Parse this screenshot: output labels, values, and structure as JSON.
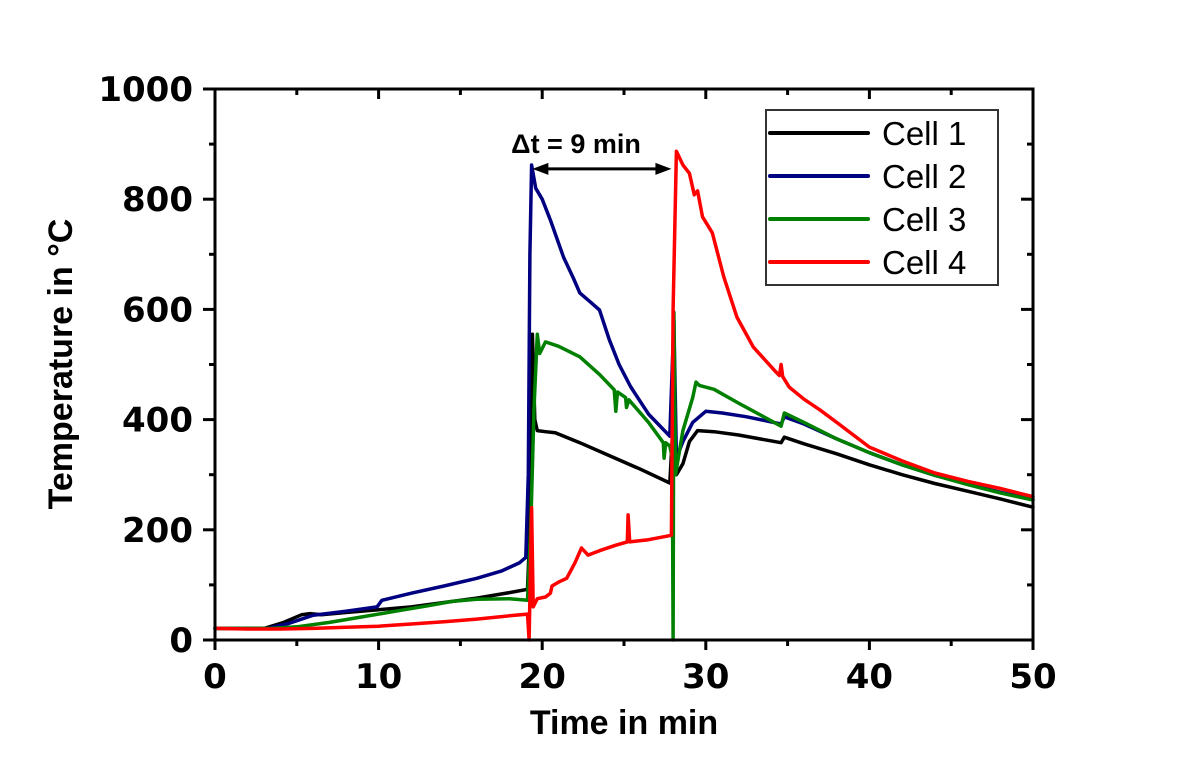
{
  "chart_data": {
    "type": "line",
    "title": "",
    "xlabel": "Time in min",
    "ylabel": "Temperature in °C",
    "xlim": [
      0,
      50
    ],
    "ylim": [
      0,
      1000
    ],
    "x_ticks": [
      0,
      10,
      20,
      30,
      40,
      50
    ],
    "x_tick_labels": [
      "0",
      "10",
      "20",
      "30",
      "40",
      "50"
    ],
    "x_minor_step": 5,
    "y_ticks": [
      0,
      200,
      400,
      600,
      800,
      1000
    ],
    "y_tick_labels": [
      "0",
      "200",
      "400",
      "600",
      "800",
      "1000"
    ],
    "y_minor_step": 100,
    "grid": false,
    "legend": {
      "position": "top-right",
      "entries": [
        "Cell 1",
        "Cell 2",
        "Cell 3",
        "Cell 4"
      ]
    },
    "annotation": {
      "text": "Δt = 9 min",
      "arrow_from_x": 19.4,
      "arrow_to_x": 27.9,
      "arrow_y": 855
    },
    "series": [
      {
        "name": "Cell 1",
        "color": "#000000",
        "points": [
          [
            0,
            21
          ],
          [
            3.0,
            21
          ],
          [
            4.2,
            32
          ],
          [
            5.3,
            46
          ],
          [
            5.8,
            48
          ],
          [
            6.5,
            46
          ],
          [
            8,
            50
          ],
          [
            10,
            55
          ],
          [
            12,
            60
          ],
          [
            14,
            68
          ],
          [
            16,
            76
          ],
          [
            18,
            86
          ],
          [
            19.1,
            92
          ],
          [
            19.25,
            200
          ],
          [
            19.4,
            555
          ],
          [
            19.55,
            400
          ],
          [
            19.7,
            380
          ],
          [
            20.2,
            378
          ],
          [
            20.8,
            376
          ],
          [
            22.3,
            358
          ],
          [
            24,
            336
          ],
          [
            26,
            310
          ],
          [
            27.8,
            285
          ],
          [
            28.05,
            420
          ],
          [
            28.2,
            300
          ],
          [
            28.6,
            320
          ],
          [
            29.0,
            360
          ],
          [
            29.5,
            380
          ],
          [
            30.5,
            378
          ],
          [
            32,
            372
          ],
          [
            34.6,
            358
          ],
          [
            34.8,
            368
          ],
          [
            36,
            356
          ],
          [
            38,
            338
          ],
          [
            40,
            318
          ],
          [
            42,
            300
          ],
          [
            44,
            284
          ],
          [
            46,
            270
          ],
          [
            48,
            256
          ],
          [
            50,
            241
          ]
        ]
      },
      {
        "name": "Cell 2",
        "color": "#000080",
        "points": [
          [
            0,
            21
          ],
          [
            3.2,
            21
          ],
          [
            4.5,
            30
          ],
          [
            6,
            45
          ],
          [
            8,
            52
          ],
          [
            9.9,
            60
          ],
          [
            10.2,
            72
          ],
          [
            12,
            85
          ],
          [
            14,
            98
          ],
          [
            16,
            112
          ],
          [
            17.5,
            125
          ],
          [
            18.6,
            140
          ],
          [
            19.0,
            150
          ],
          [
            19.15,
            300
          ],
          [
            19.25,
            700
          ],
          [
            19.35,
            862
          ],
          [
            19.6,
            820
          ],
          [
            20.0,
            800
          ],
          [
            20.5,
            762
          ],
          [
            21.3,
            695
          ],
          [
            21.9,
            657
          ],
          [
            22.3,
            630
          ],
          [
            23.0,
            612
          ],
          [
            23.5,
            599
          ],
          [
            24.1,
            545
          ],
          [
            24.7,
            500
          ],
          [
            25.4,
            460
          ],
          [
            26.5,
            410
          ],
          [
            27.8,
            370
          ],
          [
            28.05,
            580
          ],
          [
            28.2,
            330
          ],
          [
            28.6,
            360
          ],
          [
            29.2,
            395
          ],
          [
            30,
            415
          ],
          [
            31,
            412
          ],
          [
            32.5,
            405
          ],
          [
            34.6,
            392
          ],
          [
            34.8,
            405
          ],
          [
            36,
            392
          ],
          [
            38,
            365
          ],
          [
            40,
            340
          ],
          [
            42,
            318
          ],
          [
            44,
            299
          ],
          [
            46,
            283
          ],
          [
            48,
            268
          ],
          [
            50,
            255
          ]
        ]
      },
      {
        "name": "Cell 3",
        "color": "#008000",
        "points": [
          [
            0,
            21
          ],
          [
            3.5,
            21
          ],
          [
            5,
            24
          ],
          [
            7,
            32
          ],
          [
            9,
            42
          ],
          [
            11,
            52
          ],
          [
            13,
            62
          ],
          [
            14.5,
            70
          ],
          [
            16,
            74
          ],
          [
            18,
            75
          ],
          [
            19.1,
            72
          ],
          [
            19.3,
            200
          ],
          [
            19.5,
            420
          ],
          [
            19.7,
            555
          ],
          [
            19.85,
            520
          ],
          [
            20.2,
            541
          ],
          [
            21,
            533
          ],
          [
            22.3,
            514
          ],
          [
            23.5,
            482
          ],
          [
            24.4,
            454
          ],
          [
            24.5,
            415
          ],
          [
            24.6,
            450
          ],
          [
            25.1,
            440
          ],
          [
            25.15,
            422
          ],
          [
            25.3,
            436
          ],
          [
            26.5,
            395
          ],
          [
            27.4,
            358
          ],
          [
            27.45,
            330
          ],
          [
            27.55,
            358
          ],
          [
            27.8,
            352
          ],
          [
            27.95,
            330
          ],
          [
            28.0,
            0
          ],
          [
            28.05,
            595
          ],
          [
            28.15,
            300
          ],
          [
            28.6,
            380
          ],
          [
            29.2,
            440
          ],
          [
            29.4,
            468
          ],
          [
            29.6,
            462
          ],
          [
            30.5,
            455
          ],
          [
            32,
            430
          ],
          [
            34.6,
            388
          ],
          [
            34.8,
            412
          ],
          [
            36,
            395
          ],
          [
            38,
            365
          ],
          [
            40,
            340
          ],
          [
            42,
            318
          ],
          [
            44,
            299
          ],
          [
            46,
            282
          ],
          [
            48,
            267
          ],
          [
            50,
            254
          ]
        ]
      },
      {
        "name": "Cell 4",
        "color": "#ff0000",
        "points": [
          [
            0,
            21
          ],
          [
            2,
            20
          ],
          [
            4,
            20
          ],
          [
            6,
            21
          ],
          [
            8,
            23
          ],
          [
            10,
            25
          ],
          [
            12,
            29
          ],
          [
            14,
            33
          ],
          [
            16,
            38
          ],
          [
            18,
            44
          ],
          [
            19.1,
            47
          ],
          [
            19.2,
            0
          ],
          [
            19.35,
            240
          ],
          [
            19.45,
            60
          ],
          [
            19.7,
            75
          ],
          [
            20.2,
            78
          ],
          [
            20.5,
            85
          ],
          [
            20.6,
            98
          ],
          [
            21.0,
            105
          ],
          [
            21.5,
            112
          ],
          [
            22.0,
            140
          ],
          [
            22.4,
            167
          ],
          [
            22.8,
            154
          ],
          [
            23.5,
            162
          ],
          [
            24.5,
            172
          ],
          [
            25.2,
            178
          ],
          [
            25.25,
            227
          ],
          [
            25.35,
            178
          ],
          [
            26.5,
            182
          ],
          [
            27.9,
            190
          ],
          [
            28.0,
            600
          ],
          [
            28.2,
            887
          ],
          [
            28.6,
            862
          ],
          [
            29.0,
            847
          ],
          [
            29.3,
            808
          ],
          [
            29.5,
            815
          ],
          [
            29.8,
            768
          ],
          [
            30.4,
            739
          ],
          [
            31.1,
            659
          ],
          [
            31.9,
            586
          ],
          [
            32.9,
            532
          ],
          [
            34.3,
            486
          ],
          [
            34.5,
            480
          ],
          [
            34.6,
            500
          ],
          [
            34.7,
            478
          ],
          [
            35.1,
            459
          ],
          [
            36,
            437
          ],
          [
            37,
            417
          ],
          [
            38,
            395
          ],
          [
            40,
            350
          ],
          [
            42,
            325
          ],
          [
            44,
            303
          ],
          [
            46,
            288
          ],
          [
            48,
            275
          ],
          [
            50,
            260
          ]
        ]
      }
    ]
  }
}
